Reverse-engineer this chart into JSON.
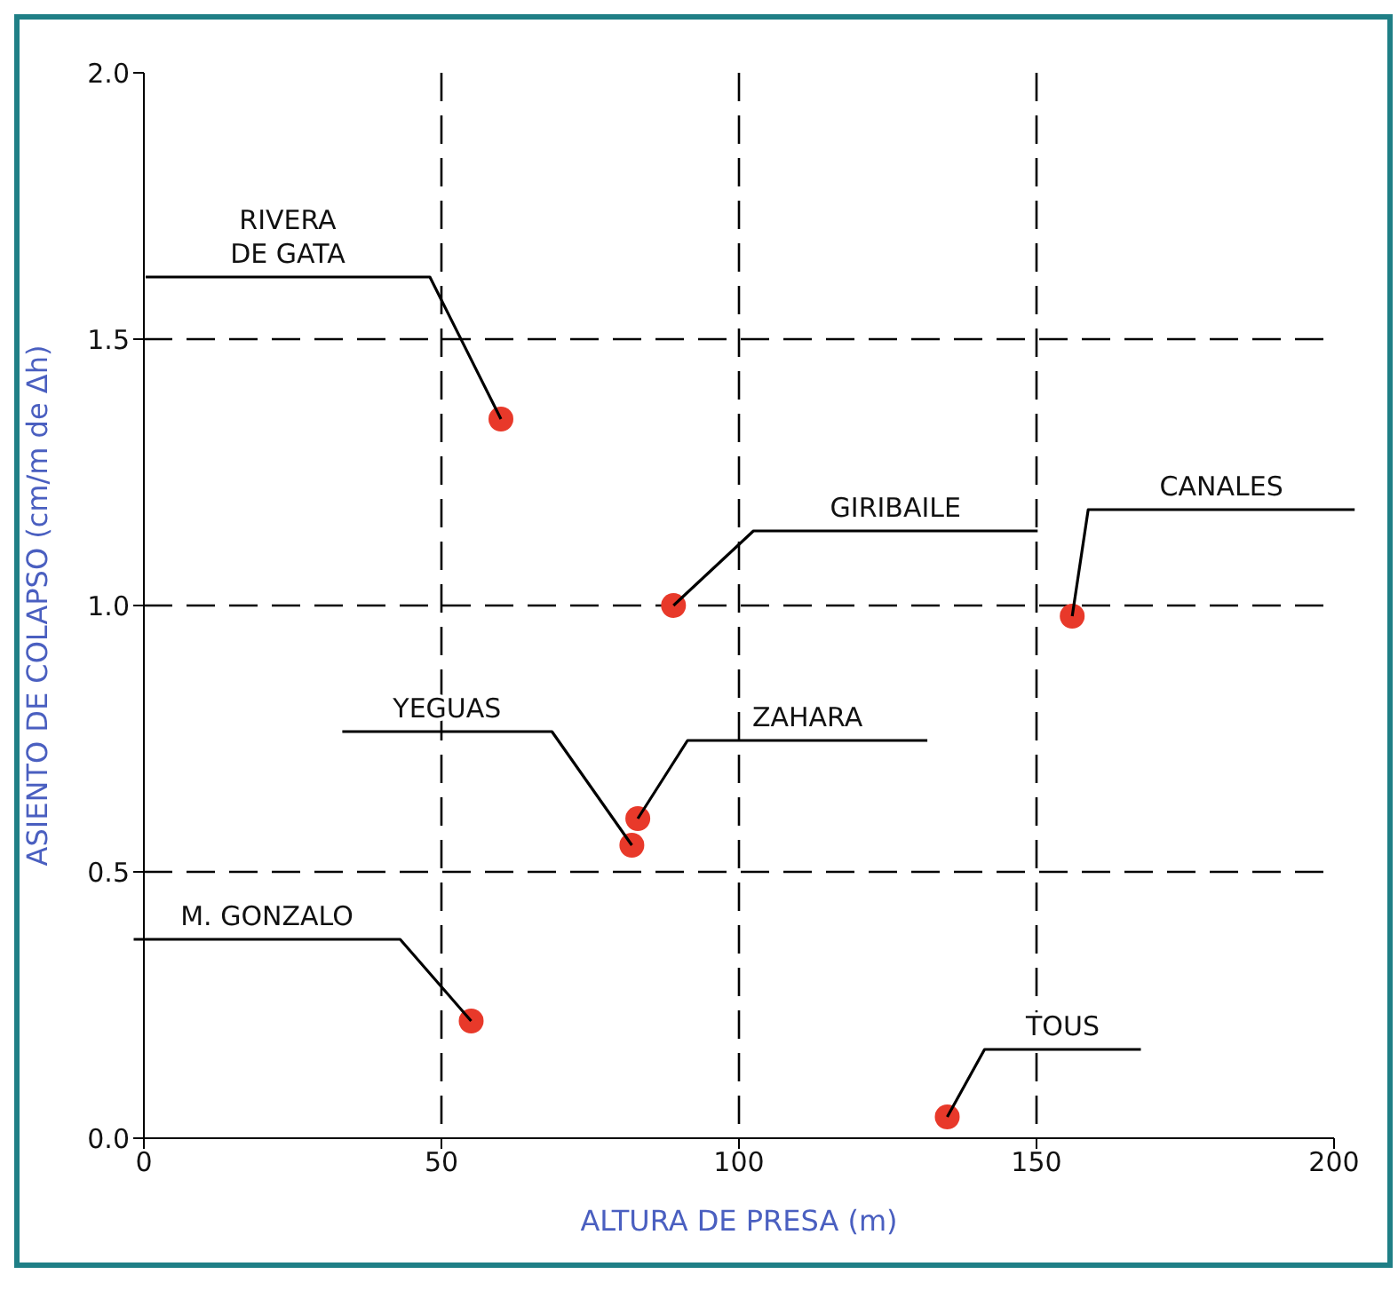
{
  "chart_data": {
    "type": "scatter",
    "xlabel": "ALTURA DE PRESA (m)",
    "ylabel": "ASIENTO DE COLAPSO (cm/m de Δh)",
    "x": [
      60,
      89,
      156,
      82,
      83,
      55,
      135
    ],
    "values": [
      1.35,
      1.0,
      0.98,
      0.55,
      0.6,
      0.22,
      0.04
    ],
    "color": "#e8392a",
    "marker": "circle",
    "xlim": [
      0,
      200
    ],
    "xticks": [
      0,
      50,
      100,
      150,
      200
    ],
    "ylim": [
      0,
      2
    ],
    "yticks": [
      {
        "value": 0,
        "label": "0.0"
      },
      {
        "value": 0.5,
        "label": "0.5"
      },
      {
        "value": 1,
        "label": "1.0"
      },
      {
        "value": 1.5,
        "label": "1.5"
      },
      {
        "value": 2,
        "label": "2.0"
      }
    ],
    "grid": true,
    "annotations": [
      {
        "text": "RIVERA DE GATA",
        "x": 60,
        "y": 1.35
      },
      {
        "text": "GIRIBAILE",
        "x": 89,
        "y": 1.0
      },
      {
        "text": "CANALES",
        "x": 156,
        "y": 0.98
      },
      {
        "text": "YEGUAS",
        "x": 82,
        "y": 0.55
      },
      {
        "text": "ZAHARA",
        "x": 83,
        "y": 0.6
      },
      {
        "text": "M. GONZALO",
        "x": 55,
        "y": 0.22
      },
      {
        "text": "TOUS",
        "x": 135,
        "y": 0.04
      }
    ]
  }
}
